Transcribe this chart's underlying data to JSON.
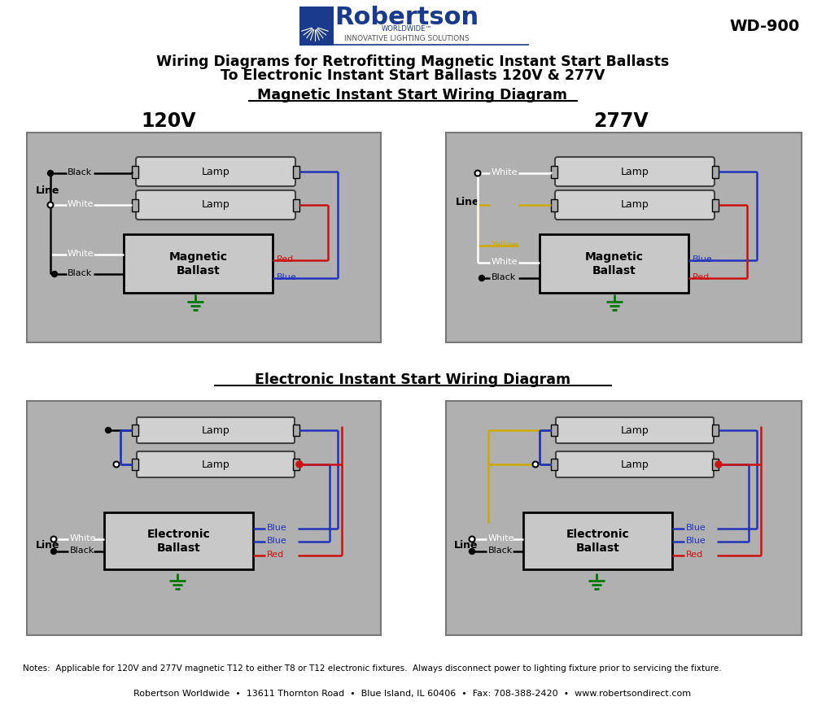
{
  "title_main_line1": "Wiring Diagrams for Retrofitting Magnetic Instant Start Ballasts",
  "title_main_line2": "To Electronic Instant Start Ballasts 120V & 277V",
  "title_magnetic": "Magnetic Instant Start Wiring Diagram",
  "title_electronic": "Electronic Instant Start Wiring Diagram",
  "label_120v": "120V",
  "label_277v": "277V",
  "label_wd900": "WD-900",
  "bg_color": "#ffffff",
  "box_color": "#b0b0b0",
  "lamp_fill": "#d0d0d0",
  "ballast_fill": "#c8c8c8",
  "notes": "Notes:  Applicable for 120V and 277V magnetic T12 to either T8 or T12 electronic fixtures.  Always disconnect power to lighting fixture prior to servicing the fixture.",
  "footer": "Robertson Worldwide  •  13611 Thornton Road  •  Blue Island, IL 60406  •  Fax: 708-388-2420  •  www.robertsondirect.com",
  "c_blue": "#2233bb",
  "c_red": "#cc1111",
  "c_green": "#007700",
  "c_yellow": "#ccaa00",
  "c_white": "#ffffff",
  "c_black": "#111111"
}
